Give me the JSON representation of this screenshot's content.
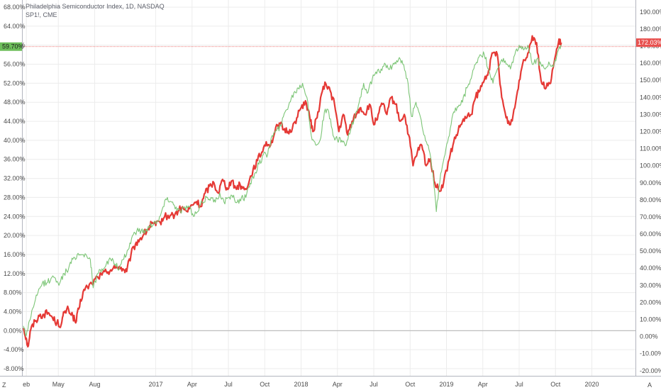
{
  "colors": {
    "background": "#ffffff",
    "grid": "#ececec",
    "axis": "#b2b5be",
    "tick_text": "#4a4a4a",
    "series_red": "#e53935",
    "series_green": "#7cc576",
    "price_line": "#e8514f",
    "left_tag_bg": "#6dbe5b"
  },
  "legend": {
    "line1": "Philadelphia Semiconductor Index, 1D, NASDAQ",
    "line2": "SP1!, CME"
  },
  "corner": {
    "left": "Z",
    "right": "A"
  },
  "chart_data": {
    "type": "line",
    "left_axis": {
      "ticks": [
        "68.00%",
        "64.00%",
        "60.00%",
        "56.00%",
        "52.00%",
        "48.00%",
        "44.00%",
        "40.00%",
        "36.00%",
        "32.00%",
        "28.00%",
        "24.00%",
        "20.00%",
        "16.00%",
        "12.00%",
        "8.00%",
        "4.00%",
        "0.00%",
        "-4.00%",
        "-8.00%"
      ],
      "range": [
        -9.5,
        69.5
      ],
      "current": "59.70%",
      "current_value": 59.7
    },
    "right_axis": {
      "ticks": [
        "190.00%",
        "180.00%",
        "170.00%",
        "160.00%",
        "150.00%",
        "140.00%",
        "130.00%",
        "120.00%",
        "110.00%",
        "100.00%",
        "90.00%",
        "80.00%",
        "70.00%",
        "60.00%",
        "50.00%",
        "40.00%",
        "30.00%",
        "20.00%",
        "10.00%",
        "0.00%",
        "-10.00%",
        "-20.00%"
      ],
      "range": [
        -23,
        197
      ],
      "current": "172.03%",
      "current_value": 172.03
    },
    "x_axis": {
      "range": [
        2016.08,
        2020.3
      ],
      "labels": [
        {
          "label": "eb",
          "t": 2016.11
        },
        {
          "label": "May",
          "t": 2016.33
        },
        {
          "label": "Aug",
          "t": 2016.58
        },
        {
          "label": "2017",
          "t": 2017.0
        },
        {
          "label": "Apr",
          "t": 2017.25
        },
        {
          "label": "Jul",
          "t": 2017.5
        },
        {
          "label": "Oct",
          "t": 2017.75
        },
        {
          "label": "2018",
          "t": 2018.0
        },
        {
          "label": "Apr",
          "t": 2018.25
        },
        {
          "label": "Jul",
          "t": 2018.5
        },
        {
          "label": "Oct",
          "t": 2018.75
        },
        {
          "label": "2019",
          "t": 2019.0
        },
        {
          "label": "Apr",
          "t": 2019.25
        },
        {
          "label": "Jul",
          "t": 2019.5
        },
        {
          "label": "Oct",
          "t": 2019.75
        },
        {
          "label": "2020",
          "t": 2020.0
        }
      ]
    },
    "series": [
      {
        "axis": "right",
        "color": "#e53935",
        "points": [
          [
            2016.09,
            5
          ],
          [
            2016.11,
            -1
          ],
          [
            2016.12,
            -6
          ],
          [
            2016.14,
            4
          ],
          [
            2016.17,
            9
          ],
          [
            2016.2,
            12
          ],
          [
            2016.23,
            13
          ],
          [
            2016.26,
            14
          ],
          [
            2016.29,
            11
          ],
          [
            2016.32,
            8
          ],
          [
            2016.35,
            7
          ],
          [
            2016.37,
            14
          ],
          [
            2016.4,
            16
          ],
          [
            2016.43,
            12
          ],
          [
            2016.45,
            8
          ],
          [
            2016.47,
            16
          ],
          [
            2016.5,
            26
          ],
          [
            2016.53,
            29
          ],
          [
            2016.56,
            31
          ],
          [
            2016.6,
            35
          ],
          [
            2016.63,
            36
          ],
          [
            2016.66,
            38
          ],
          [
            2016.69,
            39
          ],
          [
            2016.72,
            40
          ],
          [
            2016.75,
            41
          ],
          [
            2016.78,
            39
          ],
          [
            2016.8,
            38
          ],
          [
            2016.83,
            48
          ],
          [
            2016.86,
            54
          ],
          [
            2016.89,
            57
          ],
          [
            2016.92,
            60
          ],
          [
            2016.95,
            63
          ],
          [
            2016.97,
            66
          ],
          [
            2017.0,
            65
          ],
          [
            2017.03,
            67
          ],
          [
            2017.06,
            70
          ],
          [
            2017.1,
            71
          ],
          [
            2017.13,
            71
          ],
          [
            2017.16,
            74
          ],
          [
            2017.19,
            75
          ],
          [
            2017.22,
            73
          ],
          [
            2017.25,
            77
          ],
          [
            2017.28,
            79
          ],
          [
            2017.31,
            76
          ],
          [
            2017.34,
            84
          ],
          [
            2017.37,
            88
          ],
          [
            2017.4,
            90
          ],
          [
            2017.43,
            84
          ],
          [
            2017.46,
            92
          ],
          [
            2017.49,
            87
          ],
          [
            2017.52,
            91
          ],
          [
            2017.55,
            87
          ],
          [
            2017.58,
            89
          ],
          [
            2017.61,
            86
          ],
          [
            2017.64,
            90
          ],
          [
            2017.67,
            98
          ],
          [
            2017.7,
            103
          ],
          [
            2017.73,
            108
          ],
          [
            2017.76,
            114
          ],
          [
            2017.79,
            112
          ],
          [
            2017.82,
            120
          ],
          [
            2017.85,
            125
          ],
          [
            2017.88,
            121
          ],
          [
            2017.91,
            120
          ],
          [
            2017.94,
            122
          ],
          [
            2017.97,
            128
          ],
          [
            2018.0,
            134
          ],
          [
            2018.03,
            138
          ],
          [
            2018.06,
            128
          ],
          [
            2018.08,
            120
          ],
          [
            2018.11,
            128
          ],
          [
            2018.14,
            142
          ],
          [
            2018.17,
            148
          ],
          [
            2018.2,
            144
          ],
          [
            2018.23,
            136
          ],
          [
            2018.26,
            120
          ],
          [
            2018.29,
            130
          ],
          [
            2018.32,
            118
          ],
          [
            2018.35,
            126
          ],
          [
            2018.38,
            130
          ],
          [
            2018.41,
            134
          ],
          [
            2018.44,
            130
          ],
          [
            2018.47,
            136
          ],
          [
            2018.5,
            124
          ],
          [
            2018.53,
            130
          ],
          [
            2018.56,
            136
          ],
          [
            2018.59,
            130
          ],
          [
            2018.62,
            140
          ],
          [
            2018.65,
            136
          ],
          [
            2018.68,
            126
          ],
          [
            2018.71,
            130
          ],
          [
            2018.74,
            118
          ],
          [
            2018.77,
            100
          ],
          [
            2018.8,
            108
          ],
          [
            2018.83,
            112
          ],
          [
            2018.86,
            100
          ],
          [
            2018.89,
            104
          ],
          [
            2018.92,
            90
          ],
          [
            2018.95,
            85
          ],
          [
            2018.98,
            90
          ],
          [
            2019.02,
            104
          ],
          [
            2019.05,
            114
          ],
          [
            2019.08,
            120
          ],
          [
            2019.11,
            126
          ],
          [
            2019.14,
            128
          ],
          [
            2019.17,
            130
          ],
          [
            2019.2,
            140
          ],
          [
            2019.23,
            144
          ],
          [
            2019.26,
            150
          ],
          [
            2019.29,
            156
          ],
          [
            2019.32,
            166
          ],
          [
            2019.35,
            165
          ],
          [
            2019.38,
            140
          ],
          [
            2019.41,
            128
          ],
          [
            2019.44,
            124
          ],
          [
            2019.47,
            134
          ],
          [
            2019.5,
            150
          ],
          [
            2019.53,
            162
          ],
          [
            2019.56,
            166
          ],
          [
            2019.59,
            176
          ],
          [
            2019.62,
            172
          ],
          [
            2019.65,
            150
          ],
          [
            2019.68,
            145
          ],
          [
            2019.71,
            148
          ],
          [
            2019.74,
            160
          ],
          [
            2019.77,
            172
          ],
          [
            2019.79,
            172
          ]
        ]
      },
      {
        "axis": "left",
        "color": "#7cc576",
        "points": [
          [
            2016.09,
            1
          ],
          [
            2016.11,
            -1
          ],
          [
            2016.13,
            2
          ],
          [
            2016.16,
            5
          ],
          [
            2016.19,
            8
          ],
          [
            2016.22,
            10
          ],
          [
            2016.25,
            10
          ],
          [
            2016.28,
            11
          ],
          [
            2016.31,
            11
          ],
          [
            2016.34,
            10
          ],
          [
            2016.37,
            12
          ],
          [
            2016.4,
            13
          ],
          [
            2016.43,
            15
          ],
          [
            2016.46,
            16
          ],
          [
            2016.49,
            16
          ],
          [
            2016.52,
            16
          ],
          [
            2016.55,
            15
          ],
          [
            2016.57,
            9
          ],
          [
            2016.6,
            12
          ],
          [
            2016.63,
            13
          ],
          [
            2016.66,
            14
          ],
          [
            2016.69,
            15
          ],
          [
            2016.72,
            14
          ],
          [
            2016.75,
            13
          ],
          [
            2016.78,
            15
          ],
          [
            2016.81,
            17
          ],
          [
            2016.84,
            20
          ],
          [
            2016.87,
            21
          ],
          [
            2016.9,
            21
          ],
          [
            2016.93,
            21
          ],
          [
            2016.96,
            22
          ],
          [
            2016.99,
            23
          ],
          [
            2017.02,
            23
          ],
          [
            2017.05,
            26
          ],
          [
            2017.08,
            28
          ],
          [
            2017.11,
            27
          ],
          [
            2017.14,
            26
          ],
          [
            2017.17,
            25
          ],
          [
            2017.2,
            26
          ],
          [
            2017.23,
            26
          ],
          [
            2017.26,
            24
          ],
          [
            2017.29,
            25
          ],
          [
            2017.32,
            27
          ],
          [
            2017.35,
            28
          ],
          [
            2017.38,
            28
          ],
          [
            2017.41,
            27
          ],
          [
            2017.44,
            29
          ],
          [
            2017.47,
            27
          ],
          [
            2017.5,
            28
          ],
          [
            2017.53,
            28
          ],
          [
            2017.56,
            27
          ],
          [
            2017.59,
            28
          ],
          [
            2017.62,
            28
          ],
          [
            2017.65,
            31
          ],
          [
            2017.68,
            33
          ],
          [
            2017.71,
            35
          ],
          [
            2017.74,
            37
          ],
          [
            2017.77,
            37
          ],
          [
            2017.8,
            41
          ],
          [
            2017.83,
            42
          ],
          [
            2017.86,
            43
          ],
          [
            2017.89,
            46
          ],
          [
            2017.92,
            48
          ],
          [
            2017.95,
            50
          ],
          [
            2017.98,
            51
          ],
          [
            2018.01,
            52
          ],
          [
            2018.04,
            49
          ],
          [
            2018.07,
            41
          ],
          [
            2018.1,
            39
          ],
          [
            2018.13,
            40
          ],
          [
            2018.16,
            46
          ],
          [
            2018.19,
            46
          ],
          [
            2018.22,
            41
          ],
          [
            2018.25,
            40
          ],
          [
            2018.28,
            40
          ],
          [
            2018.31,
            39
          ],
          [
            2018.34,
            42
          ],
          [
            2018.37,
            45
          ],
          [
            2018.4,
            48
          ],
          [
            2018.43,
            52
          ],
          [
            2018.46,
            50
          ],
          [
            2018.49,
            53
          ],
          [
            2018.52,
            54
          ],
          [
            2018.55,
            55
          ],
          [
            2018.58,
            56
          ],
          [
            2018.61,
            55
          ],
          [
            2018.64,
            56
          ],
          [
            2018.67,
            57
          ],
          [
            2018.7,
            56
          ],
          [
            2018.73,
            53
          ],
          [
            2018.76,
            45
          ],
          [
            2018.79,
            48
          ],
          [
            2018.82,
            45
          ],
          [
            2018.85,
            41
          ],
          [
            2018.88,
            38
          ],
          [
            2018.91,
            32
          ],
          [
            2018.93,
            25
          ],
          [
            2018.96,
            33
          ],
          [
            2018.99,
            37
          ],
          [
            2019.02,
            41
          ],
          [
            2019.05,
            46
          ],
          [
            2019.08,
            47
          ],
          [
            2019.11,
            48
          ],
          [
            2019.14,
            51
          ],
          [
            2019.17,
            53
          ],
          [
            2019.2,
            56
          ],
          [
            2019.23,
            58
          ],
          [
            2019.26,
            58
          ],
          [
            2019.29,
            55
          ],
          [
            2019.32,
            52
          ],
          [
            2019.35,
            55
          ],
          [
            2019.38,
            57
          ],
          [
            2019.41,
            56
          ],
          [
            2019.44,
            55
          ],
          [
            2019.47,
            58
          ],
          [
            2019.5,
            60
          ],
          [
            2019.53,
            59
          ],
          [
            2019.56,
            60
          ],
          [
            2019.59,
            56
          ],
          [
            2019.62,
            57
          ],
          [
            2019.65,
            56
          ],
          [
            2019.68,
            55
          ],
          [
            2019.71,
            56
          ],
          [
            2019.74,
            56
          ],
          [
            2019.77,
            59
          ],
          [
            2019.79,
            60
          ]
        ]
      }
    ]
  }
}
